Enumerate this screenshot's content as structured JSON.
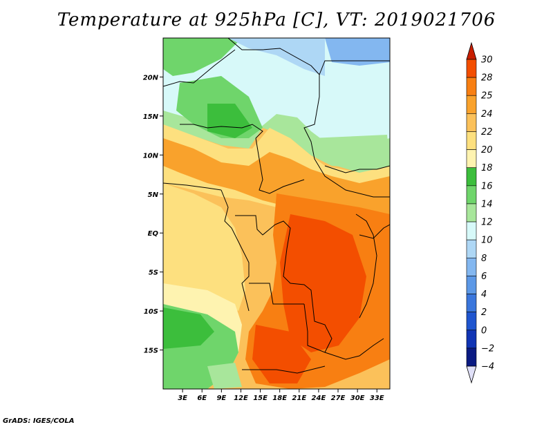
{
  "title": "Temperature at 925hPa [C], VT: 2019021706",
  "credit": "GrADS: IGES/COLA",
  "map": {
    "region": "Central Africa",
    "lon_range": [
      0,
      35
    ],
    "lat_range": [
      -20,
      25
    ],
    "lat_ticks": [
      {
        "label": "20N",
        "value": 20
      },
      {
        "label": "15N",
        "value": 15
      },
      {
        "label": "10N",
        "value": 10
      },
      {
        "label": "5N",
        "value": 5
      },
      {
        "label": "EQ",
        "value": 0
      },
      {
        "label": "5S",
        "value": -5
      },
      {
        "label": "10S",
        "value": -10
      },
      {
        "label": "15S",
        "value": -15
      }
    ],
    "lon_ticks": [
      {
        "label": "3E",
        "value": 3
      },
      {
        "label": "6E",
        "value": 6
      },
      {
        "label": "9E",
        "value": 9
      },
      {
        "label": "12E",
        "value": 12
      },
      {
        "label": "15E",
        "value": 15
      },
      {
        "label": "18E",
        "value": 18
      },
      {
        "label": "21E",
        "value": 21
      },
      {
        "label": "24E",
        "value": 24
      },
      {
        "label": "27E",
        "value": 27
      },
      {
        "label": "30E",
        "value": 30
      },
      {
        "label": "33E",
        "value": 33
      }
    ]
  },
  "colorbar": {
    "levels": [
      {
        "label": "30",
        "color": "#e62a00"
      },
      {
        "label": "28",
        "color": "#f34e00"
      },
      {
        "label": "25",
        "color": "#f87f12"
      },
      {
        "label": "24",
        "color": "#f9a22c"
      },
      {
        "label": "22",
        "color": "#fbc15a"
      },
      {
        "label": "20",
        "color": "#fde07f"
      },
      {
        "label": "18",
        "color": "#fef3b0"
      },
      {
        "label": "16",
        "color": "#3cbe3c"
      },
      {
        "label": "14",
        "color": "#6fd56b"
      },
      {
        "label": "12",
        "color": "#a8e69b"
      },
      {
        "label": "10",
        "color": "#d7f9f9"
      },
      {
        "label": "8",
        "color": "#aed7f5"
      },
      {
        "label": "6",
        "color": "#83b7f0"
      },
      {
        "label": "4",
        "color": "#5c98e6"
      },
      {
        "label": "2",
        "color": "#3a76dc"
      },
      {
        "label": "0",
        "color": "#1f55cf"
      },
      {
        "label": "−2",
        "color": "#1034b4"
      },
      {
        "label": "−4",
        "color": "#0a1a82"
      }
    ],
    "top_cap_color": "#c81e00",
    "bottom_cap_color": "#e0e0f8"
  }
}
